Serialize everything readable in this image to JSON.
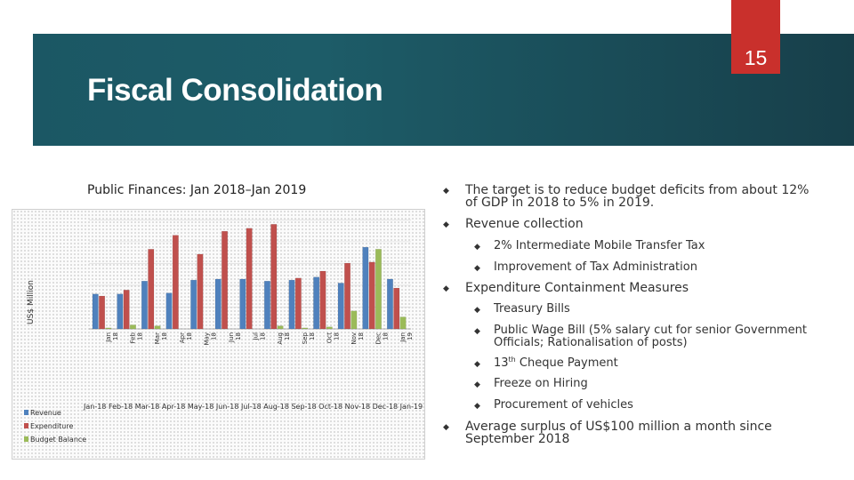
{
  "slide": {
    "number": "15",
    "title": "Fiscal Consolidation"
  },
  "chart_caption": "Public Finances: Jan 2018–Jan 2019",
  "chart_data": {
    "type": "bar",
    "title": "Public Finances: Jan 2018–Jan 2019",
    "ylabel": "US$ Million",
    "xlabel": "",
    "categories": [
      "Jan 18",
      "Feb 18",
      "Mar 18",
      "Apr 18",
      "May 18",
      "Jun 18",
      "Jul 18",
      "Aug 18",
      "Sep 18",
      "Oct 18",
      "Nov 18",
      "Dec 18",
      "Jan 19"
    ],
    "category_bottom_row": "Jan-18 Feb-18 Mar-18 Apr-18 May-18 Jun-18 Jul-18 Aug-18 Sep-18 Oct-18 Nov-18 Dec-18 Jan-19",
    "ylim": [
      0,
      5.8
    ],
    "y_ticks_labeled": false,
    "grid": true,
    "legend": "bottom-left",
    "series": [
      {
        "name": "Revenue",
        "color": "#4f81bd",
        "values": [
          1.75,
          1.75,
          2.4,
          1.8,
          2.45,
          2.5,
          2.5,
          2.4,
          2.45,
          2.6,
          2.3,
          4.1,
          2.5
        ]
      },
      {
        "name": "Expenditure",
        "color": "#c0504d",
        "values": [
          1.65,
          1.95,
          4.0,
          4.7,
          3.75,
          4.9,
          5.05,
          5.25,
          2.55,
          2.9,
          3.3,
          3.35,
          2.05
        ]
      },
      {
        "name": "Budget Balance",
        "color": "#9bbb59",
        "values": [
          0.05,
          0.2,
          0.15,
          0,
          0,
          0,
          0,
          0.15,
          0.05,
          0.1,
          0.9,
          4.0,
          0.6
        ]
      }
    ]
  },
  "bullets": [
    {
      "level": 1,
      "text": "The target is to reduce budget deficits from about 12% of GDP in 2018 to 5% in 2019."
    },
    {
      "level": 1,
      "text": "Revenue collection"
    },
    {
      "level": 2,
      "text": "2% Intermediate Mobile Transfer Tax"
    },
    {
      "level": 2,
      "text": "Improvement of Tax Administration"
    },
    {
      "level": 1,
      "text": "Expenditure Containment Measures"
    },
    {
      "level": 2,
      "text": "Treasury Bills"
    },
    {
      "level": 2,
      "text": "Public Wage Bill (5% salary cut for senior Government Officials; Rationalisation of posts)"
    },
    {
      "level": 2,
      "text_sup": "th",
      "text_pre": "13",
      "text_post": " Cheque Payment"
    },
    {
      "level": 2,
      "text": "Freeze on Hiring"
    },
    {
      "level": 2,
      "text": "Procurement of vehicles"
    },
    {
      "level": 1,
      "text": "Average surplus of US$100 million a month since September 2018"
    }
  ],
  "colors": {
    "banner": "#1b5764",
    "slide_number_tab": "#c9302c"
  }
}
